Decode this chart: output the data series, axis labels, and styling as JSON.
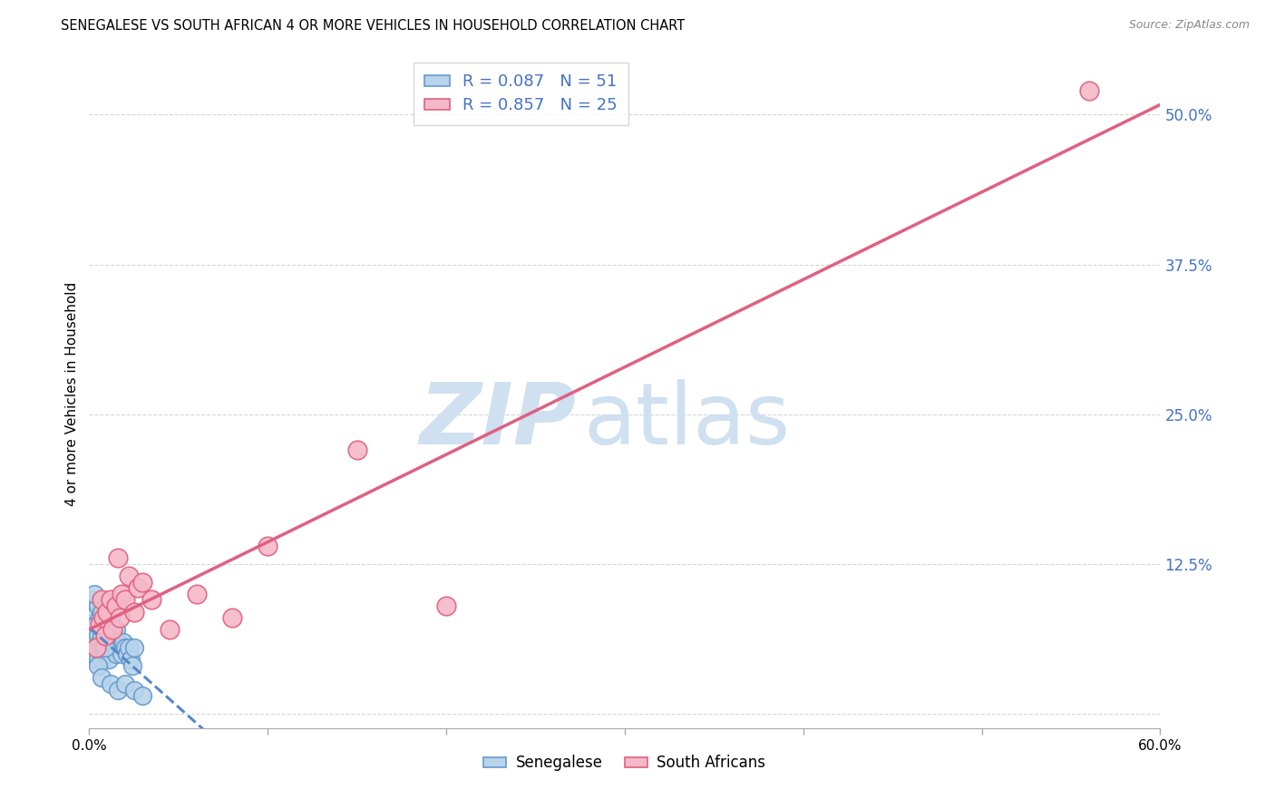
{
  "title": "SENEGALESE VS SOUTH AFRICAN 4 OR MORE VEHICLES IN HOUSEHOLD CORRELATION CHART",
  "source": "Source: ZipAtlas.com",
  "ylabel": "4 or more Vehicles in Household",
  "senegalese_R": 0.087,
  "senegalese_N": 51,
  "sa_R": 0.857,
  "sa_N": 25,
  "blue_scatter_face": "#b8d4ea",
  "blue_scatter_edge": "#6699cc",
  "pink_scatter_face": "#f5b8c8",
  "pink_scatter_edge": "#e06080",
  "blue_line_color": "#5588cc",
  "pink_line_color": "#e06080",
  "watermark_zip_color": "#cfe0f0",
  "watermark_atlas_color": "#cfe0f0",
  "grid_color": "#cccccc",
  "ytick_color": "#4472c4",
  "xlim": [
    0.0,
    0.6
  ],
  "ylim": [
    -0.012,
    0.545
  ],
  "senegalese_x": [
    0.001,
    0.001,
    0.001,
    0.002,
    0.002,
    0.002,
    0.003,
    0.003,
    0.004,
    0.004,
    0.005,
    0.005,
    0.005,
    0.006,
    0.006,
    0.007,
    0.007,
    0.007,
    0.008,
    0.008,
    0.009,
    0.009,
    0.01,
    0.01,
    0.011,
    0.011,
    0.012,
    0.012,
    0.013,
    0.014,
    0.015,
    0.015,
    0.016,
    0.017,
    0.018,
    0.019,
    0.02,
    0.021,
    0.022,
    0.023,
    0.024,
    0.025,
    0.003,
    0.005,
    0.007,
    0.009,
    0.012,
    0.016,
    0.02,
    0.025,
    0.03
  ],
  "senegalese_y": [
    0.095,
    0.075,
    0.055,
    0.08,
    0.06,
    0.05,
    0.07,
    0.05,
    0.075,
    0.055,
    0.09,
    0.065,
    0.045,
    0.08,
    0.06,
    0.085,
    0.065,
    0.045,
    0.075,
    0.055,
    0.07,
    0.05,
    0.075,
    0.055,
    0.065,
    0.045,
    0.08,
    0.055,
    0.06,
    0.065,
    0.07,
    0.05,
    0.06,
    0.055,
    0.05,
    0.06,
    0.055,
    0.05,
    0.055,
    0.045,
    0.04,
    0.055,
    0.1,
    0.04,
    0.03,
    0.055,
    0.025,
    0.02,
    0.025,
    0.02,
    0.015
  ],
  "sa_x": [
    0.004,
    0.006,
    0.007,
    0.008,
    0.009,
    0.01,
    0.012,
    0.013,
    0.015,
    0.016,
    0.017,
    0.018,
    0.02,
    0.022,
    0.025,
    0.027,
    0.03,
    0.035,
    0.045,
    0.06,
    0.08,
    0.1,
    0.15,
    0.2,
    0.56
  ],
  "sa_y": [
    0.055,
    0.075,
    0.095,
    0.08,
    0.065,
    0.085,
    0.095,
    0.07,
    0.09,
    0.13,
    0.08,
    0.1,
    0.095,
    0.115,
    0.085,
    0.105,
    0.11,
    0.095,
    0.07,
    0.1,
    0.08,
    0.14,
    0.22,
    0.09,
    0.52
  ]
}
